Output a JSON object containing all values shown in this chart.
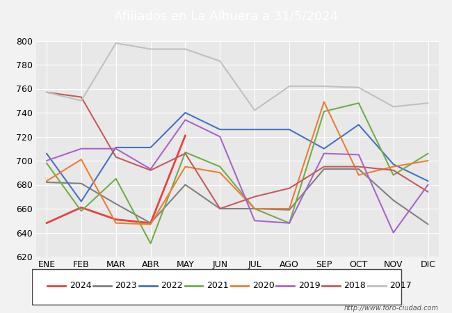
{
  "title": "Afiliados en La Albuera a 31/5/2024",
  "title_color": "#ffffff",
  "title_bg": "#4472c4",
  "months": [
    "ENE",
    "FEB",
    "MAR",
    "ABR",
    "MAY",
    "JUN",
    "JUL",
    "AGO",
    "SEP",
    "OCT",
    "NOV",
    "DIC"
  ],
  "ylim": [
    620,
    800
  ],
  "yticks": [
    620,
    640,
    660,
    680,
    700,
    720,
    740,
    760,
    780,
    800
  ],
  "series": {
    "2024": {
      "color": "#e8413e",
      "data": [
        648,
        661,
        651,
        648,
        721,
        null,
        null,
        null,
        null,
        null,
        null,
        null
      ]
    },
    "2023": {
      "color": "#808080",
      "data": [
        682,
        681,
        664,
        648,
        680,
        660,
        660,
        659,
        693,
        693,
        667,
        647
      ]
    },
    "2022": {
      "color": "#4472c4",
      "data": [
        706,
        666,
        711,
        711,
        740,
        726,
        726,
        726,
        710,
        730,
        697,
        683
      ]
    },
    "2021": {
      "color": "#70ad47",
      "data": [
        698,
        658,
        685,
        631,
        707,
        695,
        660,
        648,
        741,
        748,
        688,
        706
      ]
    },
    "2020": {
      "color": "#ed7d31",
      "data": [
        683,
        701,
        648,
        647,
        695,
        690,
        660,
        660,
        749,
        688,
        695,
        700
      ]
    },
    "2019": {
      "color": "#a865c9",
      "data": [
        700,
        710,
        710,
        693,
        734,
        720,
        650,
        648,
        706,
        705,
        640,
        680
      ]
    },
    "2018": {
      "color": "#c45b5b",
      "data": [
        757,
        753,
        703,
        692,
        706,
        660,
        670,
        677,
        695,
        695,
        692,
        674
      ]
    },
    "2017": {
      "color": "#c0c0c0",
      "data": [
        757,
        750,
        798,
        793,
        793,
        783,
        742,
        762,
        762,
        761,
        745,
        748
      ]
    }
  },
  "legend_order": [
    "2024",
    "2023",
    "2022",
    "2021",
    "2020",
    "2019",
    "2018",
    "2017"
  ],
  "watermark": "http://www.foro-ciudad.com",
  "bg_color": "#f2f2f2",
  "plot_bg": "#e8e8e8"
}
